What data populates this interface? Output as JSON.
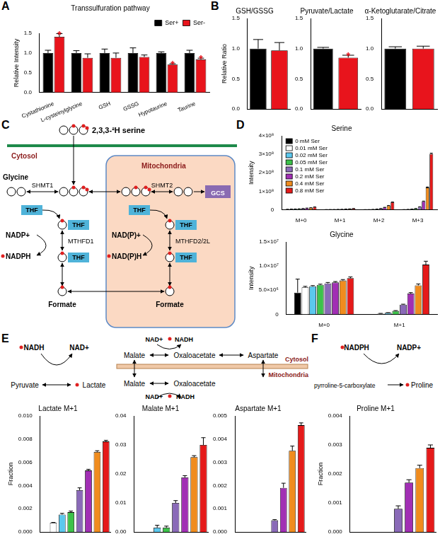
{
  "panels": [
    "A",
    "B",
    "C",
    "D",
    "E",
    "F"
  ],
  "chart_data": [
    {
      "type": "bar",
      "title": "Transsulfuration pathway",
      "y_label": "Relative Intensity",
      "categories": [
        "Cystathionine",
        "L-cysteinylglycine",
        "GSH",
        "GSSG",
        "Hypotaurine",
        "Taurine"
      ],
      "series": [
        {
          "name": "Ser+",
          "color": "#000000",
          "values": [
            1,
            1,
            1,
            1,
            1,
            1
          ],
          "errors": [
            0.07,
            0.06,
            0.1,
            0.13,
            0.03,
            0.07
          ]
        },
        {
          "name": "Ser-",
          "color": "#e8141c",
          "values": [
            1.41,
            0.88,
            0.88,
            0.9,
            0.71,
            0.84
          ],
          "errors": [
            0.08,
            0.1,
            0.12,
            0.05,
            0.02,
            0.03
          ]
        }
      ],
      "ylim": [
        0,
        1.5
      ],
      "yticks": [
        {
          "value": 0,
          "label": "0.0"
        },
        {
          "value": 0.5,
          "label": "0.5"
        },
        {
          "value": 1,
          "label": "1.0"
        },
        {
          "value": 1.5,
          "label": "1.5"
        }
      ],
      "grid": false,
      "legend": "top-right",
      "annotations": [
        {
          "text": "*",
          "category": "Cystathionine",
          "series": "Ser-"
        },
        {
          "text": "*",
          "category": "Hypotaurine",
          "series": "Ser-"
        },
        {
          "text": "*",
          "category": "Taurine",
          "series": "Ser-"
        }
      ]
    },
    {
      "type": "bar",
      "title": "GSH/GSSG",
      "y_label": "Relative Ratio",
      "categories": [
        null,
        null
      ],
      "series": [
        {
          "colors": [
            "#000000",
            "#e8141c"
          ],
          "values": [
            1,
            0.97
          ],
          "errors": [
            0.15,
            0.13
          ]
        }
      ],
      "ylim": [
        0,
        1.5
      ],
      "yticks": [
        {
          "value": 0,
          "label": "0.0"
        },
        {
          "value": 0.5,
          "label": "0.5"
        },
        {
          "value": 1,
          "label": "1.0"
        },
        {
          "value": 1.5,
          "label": "1.5"
        }
      ],
      "grid": false,
      "tick_labels": "y"
    },
    {
      "type": "bar",
      "title": "Pyruvate/Lactate",
      "categories": [
        null,
        null
      ],
      "series": [
        {
          "colors": [
            "#000000",
            "#e8141c"
          ],
          "values": [
            1,
            0.85
          ],
          "errors": [
            0.02,
            0.04
          ]
        }
      ],
      "ylim": [
        0,
        1.5
      ],
      "yticks": [
        {
          "value": 0,
          "label": "0.0"
        },
        {
          "value": 0.5,
          "label": "0.5"
        },
        {
          "value": 1,
          "label": "1.0"
        },
        {
          "value": 1.5,
          "label": "1.5"
        }
      ],
      "grid": false,
      "tick_labels": "y",
      "annotations": [
        {
          "text": "*",
          "index": 1
        }
      ]
    },
    {
      "type": "bar",
      "title": "α-Ketoglutarate/Citrate",
      "categories": [
        null,
        null
      ],
      "series": [
        {
          "colors": [
            "#000000",
            "#e8141c"
          ],
          "values": [
            1,
            1
          ],
          "errors": [
            0.03,
            0.04
          ]
        }
      ],
      "ylim": [
        0,
        1.5
      ],
      "yticks": [
        {
          "value": 0,
          "label": "0.0"
        },
        {
          "value": 0.5,
          "label": "0.5"
        },
        {
          "value": 1,
          "label": "1.0"
        },
        {
          "value": 1.5,
          "label": "1.5"
        }
      ],
      "grid": false,
      "tick_labels": "y"
    },
    {
      "type": "bar",
      "title": "Serine",
      "y_label": "Intensity",
      "categories": [
        "M+0",
        "M+1",
        "M+2",
        "M+3"
      ],
      "series": [
        {
          "name": "0 mM Ser",
          "color": "#000000",
          "values": [
            2000000,
            500000,
            300000,
            500000
          ],
          "errors": [
            300000,
            100000,
            100000,
            100000
          ]
        },
        {
          "name": "0.01 mM Ser",
          "color": "#ffffff",
          "values": [
            3000000,
            800000,
            500000,
            1500000
          ],
          "errors": [
            300000,
            100000,
            100000,
            200000
          ]
        },
        {
          "name": "0.02 mM Ser",
          "color": "#5bc8ee",
          "values": [
            3500000,
            1000000,
            1500000,
            3000000
          ],
          "errors": [
            300000,
            100000,
            200000,
            300000
          ]
        },
        {
          "name": "0.05 mM Ser",
          "color": "#3cc24a",
          "values": [
            4500000,
            1500000,
            3000000,
            6000000
          ],
          "errors": [
            300000,
            200000,
            300000,
            500000
          ]
        },
        {
          "name": "0.1 mM Ser",
          "color": "#8a6ab8",
          "values": [
            6000000,
            2000000,
            6000000,
            15000000
          ],
          "errors": [
            400000,
            200000,
            400000,
            800000
          ]
        },
        {
          "name": "0.2 mM Ser",
          "color": "#a12fb4",
          "values": [
            8000000,
            3000000,
            12000000,
            45000000
          ],
          "errors": [
            500000,
            300000,
            600000,
            1500000
          ]
        },
        {
          "name": "0.4 mM Ser",
          "color": "#f08c1e",
          "values": [
            10000000,
            4000000,
            22000000,
            120000000
          ],
          "errors": [
            600000,
            300000,
            800000,
            3000000
          ]
        },
        {
          "name": "0.8 mM Ser",
          "color": "#e51a1a",
          "values": [
            14000000,
            6000000,
            40000000,
            302000000
          ],
          "errors": [
            800000,
            400000,
            1500000,
            4000000
          ]
        }
      ],
      "ylim": [
        0,
        400000000
      ],
      "yticks": [
        0,
        {
          "value": 100000000,
          "label": "1×10⁸"
        },
        {
          "value": 200000000,
          "label": "2×10⁸"
        },
        {
          "value": 300000000,
          "label": "3×10⁸"
        },
        {
          "value": 400000000,
          "label": "4×10⁸"
        }
      ],
      "grid": false,
      "legend": "top-left"
    },
    {
      "type": "bar",
      "title": "Glycine",
      "y_label": "Intensity",
      "categories": [
        "M+0",
        "M+1"
      ],
      "series": [
        {
          "color": "#000000",
          "values": [
            4500000,
            0
          ],
          "errors": [
            2800000,
            0
          ]
        },
        {
          "color": "#ffffff",
          "values": [
            5600000,
            150000
          ],
          "errors": [
            200000,
            50000
          ]
        },
        {
          "color": "#5bc8ee",
          "values": [
            5800000,
            300000
          ],
          "errors": [
            150000,
            50000
          ]
        },
        {
          "color": "#3cc24a",
          "values": [
            6100000,
            700000
          ],
          "errors": [
            150000,
            80000
          ]
        },
        {
          "color": "#8a6ab8",
          "values": [
            6400000,
            2000000
          ],
          "errors": [
            200000,
            100000
          ]
        },
        {
          "color": "#a12fb4",
          "values": [
            6600000,
            4300000
          ],
          "errors": [
            200000,
            200000
          ]
        },
        {
          "color": "#f08c1e",
          "values": [
            7000000,
            6000000
          ],
          "errors": [
            200000,
            300000
          ]
        },
        {
          "color": "#e51a1a",
          "values": [
            7500000,
            10300000
          ],
          "errors": [
            250000,
            700000
          ]
        }
      ],
      "ylim": [
        0,
        15000000
      ],
      "yticks": [
        0,
        {
          "value": 5000000,
          "label": "5.0×10⁶"
        },
        {
          "value": 10000000,
          "label": "1.0×10⁷"
        },
        {
          "value": 15000000,
          "label": "1.5×10⁷"
        }
      ],
      "grid": false
    },
    {
      "type": "bar",
      "title": "Lactate M+1",
      "y_label": "Fraction",
      "categories": [
        null,
        null,
        null,
        null,
        null,
        null,
        null,
        null
      ],
      "series": [
        {
          "colors": [
            "#000000",
            "#ffffff",
            "#5bc8ee",
            "#3cc24a",
            "#8a6ab8",
            "#a12fb4",
            "#f08c1e",
            "#e51a1a"
          ],
          "values": [
            0,
            0.0008,
            0.0015,
            0.0017,
            0.0036,
            0.0053,
            0.0069,
            0.0078
          ],
          "errors": [
            0,
            2e-05,
            0.0001,
            0.0001,
            0.0002,
            0.0001,
            0.0001,
            0.0001
          ]
        }
      ],
      "ylim": [
        0,
        0.01
      ],
      "yticks": [
        {
          "value": 0,
          "label": "0.000"
        },
        {
          "value": 0.002,
          "label": "0.002"
        },
        {
          "value": 0.004,
          "label": "0.004"
        },
        {
          "value": 0.006,
          "label": "0.006"
        },
        {
          "value": 0.008,
          "label": "0.008"
        },
        {
          "value": 0.01,
          "label": "0.010"
        }
      ],
      "grid": false,
      "tick_labels": "y"
    },
    {
      "type": "bar",
      "title": "Malate M+1",
      "categories": [
        null,
        null,
        null,
        null,
        null,
        null,
        null,
        null
      ],
      "series": [
        {
          "colors": [
            "#000000",
            "#ffffff",
            "#5bc8ee",
            "#3cc24a",
            "#8a6ab8",
            "#a12fb4",
            "#f08c1e",
            "#e51a1a"
          ],
          "values": [
            0,
            0,
            0.0015,
            0.0015,
            0.01,
            0.0188,
            0.0258,
            0.03
          ],
          "errors": [
            0,
            0,
            0.0008,
            0.0005,
            0.0008,
            0.0006,
            0.0005,
            0.0025
          ]
        }
      ],
      "ylim": [
        0,
        0.04
      ],
      "yticks": [
        {
          "value": 0,
          "label": "0.00"
        },
        {
          "value": 0.01,
          "label": "0.01"
        },
        {
          "value": 0.02,
          "label": "0.02"
        },
        {
          "value": 0.03,
          "label": "0.03"
        },
        {
          "value": 0.04,
          "label": "0.04"
        }
      ],
      "grid": false,
      "tick_labels": "y"
    },
    {
      "type": "bar",
      "title": "Aspartate M+1",
      "categories": [
        null,
        null,
        null,
        null,
        null,
        null,
        null,
        null
      ],
      "series": [
        {
          "colors": [
            "#000000",
            "#ffffff",
            "#5bc8ee",
            "#3cc24a",
            "#8a6ab8",
            "#a12fb4",
            "#f08c1e",
            "#e51a1a"
          ],
          "values": [
            0,
            0,
            0,
            0,
            0.0005,
            0.0019,
            0.0035,
            0.0046
          ],
          "errors": [
            0,
            0,
            0,
            0,
            3e-05,
            0.0002,
            0.0002,
            0.0001
          ]
        }
      ],
      "ylim": [
        0,
        0.005
      ],
      "yticks": [
        {
          "value": 0,
          "label": "0.000"
        },
        {
          "value": 0.001,
          "label": "0.001"
        },
        {
          "value": 0.002,
          "label": "0.002"
        },
        {
          "value": 0.003,
          "label": "0.003"
        },
        {
          "value": 0.004,
          "label": "0.004"
        },
        {
          "value": 0.005,
          "label": "0.005"
        }
      ],
      "grid": false,
      "tick_labels": "y"
    },
    {
      "type": "bar",
      "title": "Proline M+1",
      "y_label": "Fraction",
      "categories": [
        null,
        null,
        null,
        null,
        null,
        null,
        null,
        null
      ],
      "series": [
        {
          "colors": [
            "#000000",
            "#ffffff",
            "#5bc8ee",
            "#3cc24a",
            "#8a6ab8",
            "#a12fb4",
            "#f08c1e",
            "#e51a1a"
          ],
          "values": [
            0,
            0,
            0,
            0,
            0.0008,
            0.0017,
            0.0022,
            0.0029
          ],
          "errors": [
            0,
            0,
            0,
            0,
            0.0001,
            0.0001,
            0.0001,
            0.0001
          ]
        }
      ],
      "ylim": [
        0,
        0.004
      ],
      "yticks": [
        {
          "value": 0,
          "label": "0.000"
        },
        {
          "value": 0.001,
          "label": "0.001"
        },
        {
          "value": 0.002,
          "label": "0.002"
        },
        {
          "value": 0.003,
          "label": "0.003"
        },
        {
          "value": 0.004,
          "label": "0.004"
        }
      ],
      "grid": false,
      "tick_labels": "y"
    }
  ],
  "diagram": {
    "serine": "2,3,3-²H serine",
    "cytosol": "Cytosol",
    "mitochondria": "Mitochondria",
    "glycine": "Glycine",
    "shmt1": "SHMT1",
    "shmt2": "SHMT2",
    "gcs": "GCS",
    "thf": "THF",
    "nadp_ox": "NADP+",
    "nadp_red": "NADPH",
    "mthfd1": "MTHFD1",
    "nadp_mito_ox": "NAD(P)+",
    "nadp_mito_red": "NAD(P)H",
    "mthfd2": "MTHFD2/2L",
    "formate": "Formate"
  },
  "reactions": {
    "lactate": {
      "substrate": "Pyruvate",
      "product": "Lactate",
      "cofactor_in": "NADH",
      "cofactor_out": "NAD+"
    },
    "malate_aspartate": {
      "cytosol": "Cytosol",
      "mitochondria": "Mitochondria",
      "malate": "Malate",
      "oxaloacetate": "Oxaloacetate",
      "aspartate": "Aspartate",
      "oxidized": "NAD+",
      "reduced": "NADH"
    },
    "proline": {
      "substrate": "pyrroline-5-carboxylate",
      "product": "Proline",
      "cofactor_in": "NADPH",
      "cofactor_out": "NADP+"
    }
  }
}
